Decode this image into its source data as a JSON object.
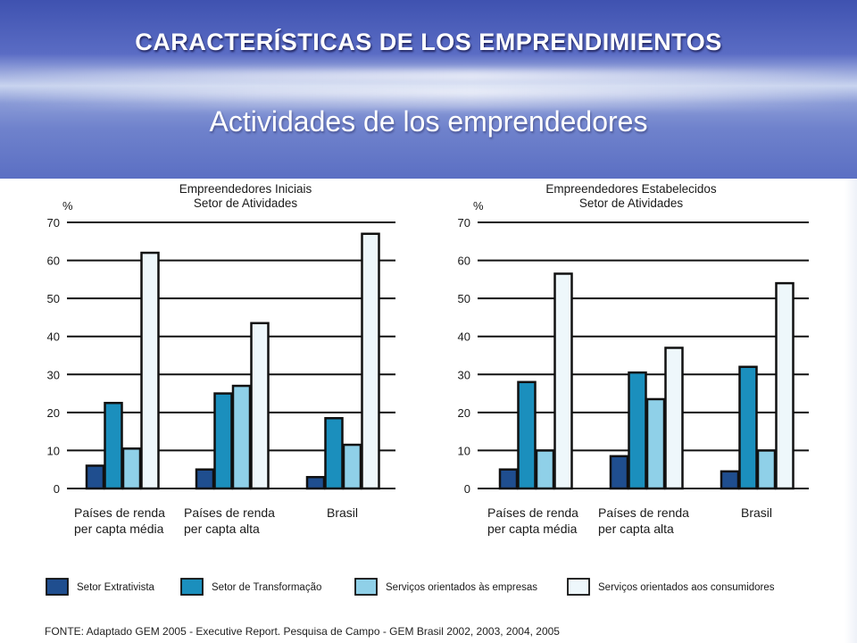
{
  "slide": {
    "title": "CARACTERÍSTICAS DE LOS EMPRENDIMIENTOS",
    "subtitle": "Actividades de los emprendedores"
  },
  "colors": {
    "series": [
      "#1f4e8f",
      "#1b8fbd",
      "#8fd0e8",
      "#eef7fb"
    ],
    "stroke": "#111111"
  },
  "chart_data": [
    {
      "type": "bar",
      "title": "Empreendedores Iniciais\nSetor de Atividades",
      "ylabel": "%",
      "ylim": [
        0,
        70
      ],
      "yticks": [
        0,
        10,
        20,
        30,
        40,
        50,
        60,
        70
      ],
      "grid": true,
      "categories": [
        "Países de renda\nper capta média",
        "Países de renda\nper capta alta",
        "Brasil"
      ],
      "series": [
        {
          "name": "Setor Extrativista",
          "values": [
            6,
            5,
            3
          ]
        },
        {
          "name": "Setor de Transformação",
          "values": [
            22.5,
            25,
            18.5
          ]
        },
        {
          "name": "Serviços orientados às empresas",
          "values": [
            10.5,
            27,
            11.5
          ]
        },
        {
          "name": "Serviços orientados aos consumidores",
          "values": [
            62,
            43.5,
            67
          ]
        }
      ]
    },
    {
      "type": "bar",
      "title": "Empreendedores Estabelecidos\nSetor de Atividades",
      "ylabel": "%",
      "ylim": [
        0,
        70
      ],
      "yticks": [
        0,
        10,
        20,
        30,
        40,
        50,
        60,
        70
      ],
      "grid": true,
      "categories": [
        "Países de renda\nper capta média",
        "Países de renda\nper capta alta",
        "Brasil"
      ],
      "series": [
        {
          "name": "Setor Extrativista",
          "values": [
            5,
            8.5,
            4.5
          ]
        },
        {
          "name": "Setor de Transformação",
          "values": [
            28,
            30.5,
            32
          ]
        },
        {
          "name": "Serviços orientados às empresas",
          "values": [
            10,
            23.5,
            10
          ]
        },
        {
          "name": "Serviços orientados aos consumidores",
          "values": [
            56.5,
            37,
            54
          ]
        }
      ]
    }
  ],
  "legend": [
    "Setor  Extrativista",
    "Setor  de Transformação",
    "Serviços orientados às empresas",
    "Serviços orientados aos consumidores"
  ],
  "source": "FONTE: Adaptado GEM 2005 - Executive Report. Pesquisa de Campo - GEM Brasil 2002, 2003, 2004, 2005"
}
